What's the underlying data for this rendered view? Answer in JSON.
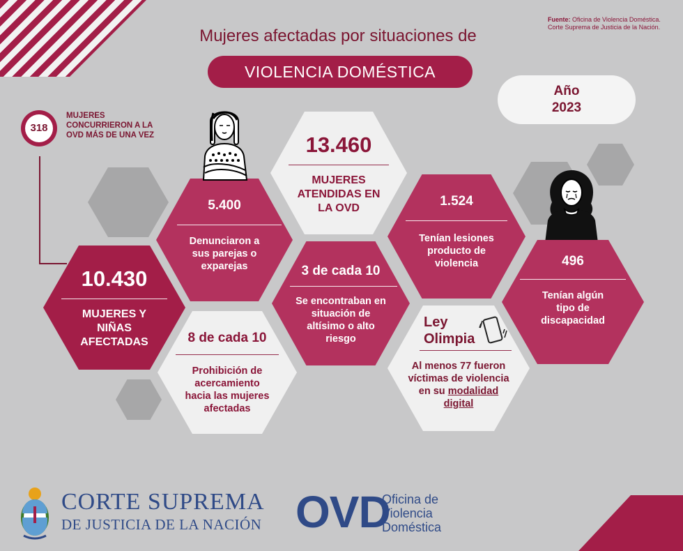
{
  "source": {
    "label": "Fuente:",
    "line1": "Oficina de Violencia Doméstica.",
    "line2": "Corte Suprema de Justicia de la Nación."
  },
  "header": {
    "title": "Mujeres afectadas por situaciones de",
    "subtitle": "VIOLENCIA DOMÉSTICA"
  },
  "year": {
    "label": "Año",
    "value": "2023"
  },
  "repeat": {
    "count": "318",
    "text": "MUJERES CONCURRIERON A LA OVD MÁS DE UNA VEZ"
  },
  "stats": {
    "affected": {
      "number": "10.430",
      "text": "MUJERES Y NIÑAS AFECTADAS"
    },
    "reported": {
      "number": "5.400",
      "text": "Denunciaron a sus parejas o exparejas"
    },
    "attended": {
      "number": "13.460",
      "text": "MUJERES ATENDIDAS EN LA OVD"
    },
    "risk": {
      "number": "3 de cada 10",
      "text": "Se encontraban en situación de altísimo o alto riesgo"
    },
    "injuries": {
      "number": "1.524",
      "text": "Tenían lesiones producto de violencia"
    },
    "disability": {
      "number": "496",
      "text": "Tenían algún tipo de discapacidad"
    },
    "prohibition": {
      "number": "8 de cada 10",
      "text": "Prohibición de acercamiento hacia las mujeres afectadas"
    },
    "olimpia": {
      "title": "Ley Olimpia",
      "text": "Al menos 77 fueron víctimas de violencia en su",
      "text_link": "modalidad digital"
    }
  },
  "logos": {
    "court_line1": "CORTE SUPREMA",
    "court_line2": "DE JUSTICIA DE LA NACIÓN",
    "ovd_abbr": "OVD",
    "ovd_line1": "Oficina de",
    "ovd_line2": "Violencia",
    "ovd_line3": "Doméstica"
  },
  "colors": {
    "accent": "#a31e48",
    "accent_light": "#b3325e",
    "text_dark": "#7a1530",
    "background": "#c8c8c9",
    "navy": "#2f4a87"
  },
  "icons": [
    "woman-arms-crossed-icon",
    "woman-crying-icon",
    "phone-vibrating-icon",
    "coat-of-arms-icon"
  ]
}
